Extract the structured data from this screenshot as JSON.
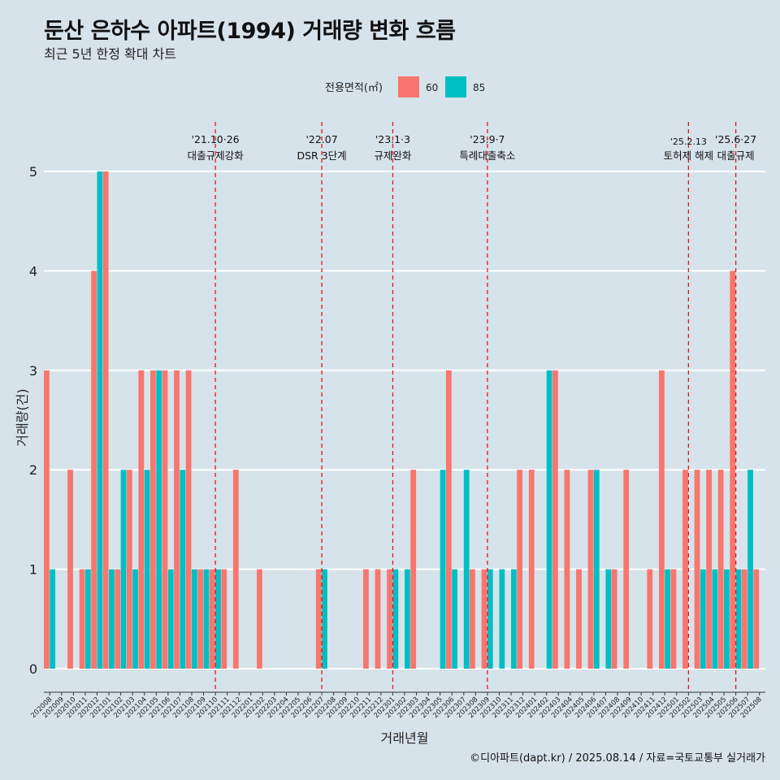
{
  "title": "둔산 은하수 아파트(1994) 거래량 변화 흐름",
  "subtitle": "최근 5년 한정 확대 차트",
  "caption": "©디아파트(dapt.kr) / 2025.08.14 / 자료=국토교통부 실거래가",
  "colors": {
    "s60": "#f8766d",
    "s85": "#00bfc4",
    "event": "#e8141e",
    "grid": "#ffffff"
  },
  "chart_data": {
    "type": "bar",
    "title": "둔산 은하수 아파트(1994) 거래량 변화 흐름",
    "subtitle": "최근 5년 한정 확대 차트",
    "xlabel": "거래년월",
    "ylabel": "거래량(건)",
    "ylim": [
      0,
      5
    ],
    "y_ticks": [
      0,
      1,
      2,
      3,
      4,
      5
    ],
    "grid": true,
    "legend": {
      "title": "전용면적(㎡)",
      "position": "top",
      "entries": [
        "60",
        "85"
      ]
    },
    "categories": [
      "202008",
      "202009",
      "202010",
      "202011",
      "202012",
      "202101",
      "202102",
      "202103",
      "202104",
      "202105",
      "202106",
      "202107",
      "202108",
      "202109",
      "202110",
      "202111",
      "202112",
      "202201",
      "202202",
      "202203",
      "202204",
      "202205",
      "202206",
      "202207",
      "202208",
      "202209",
      "202210",
      "202211",
      "202212",
      "202301",
      "202302",
      "202303",
      "202304",
      "202305",
      "202306",
      "202307",
      "202308",
      "202309",
      "202310",
      "202311",
      "202312",
      "202401",
      "202402",
      "202403",
      "202404",
      "202405",
      "202406",
      "202407",
      "202408",
      "202409",
      "202410",
      "202411",
      "202412",
      "202501",
      "202502",
      "202503",
      "202504",
      "202505",
      "202506",
      "202507",
      "202508"
    ],
    "series": [
      {
        "name": "60",
        "values": [
          3,
          0,
          2,
          1,
          4,
          5,
          1,
          2,
          3,
          3,
          3,
          3,
          3,
          1,
          1,
          1,
          2,
          0,
          1,
          0,
          0,
          0,
          0,
          1,
          0,
          0,
          0,
          1,
          1,
          1,
          0,
          2,
          0,
          0,
          3,
          0,
          1,
          1,
          0,
          0,
          2,
          2,
          0,
          3,
          2,
          1,
          2,
          0,
          1,
          2,
          0,
          1,
          3,
          1,
          2,
          2,
          2,
          2,
          4,
          1,
          1
        ]
      },
      {
        "name": "85",
        "values": [
          1,
          0,
          0,
          1,
          5,
          1,
          2,
          1,
          2,
          3,
          1,
          2,
          1,
          1,
          1,
          0,
          0,
          0,
          0,
          0,
          0,
          0,
          0,
          1,
          0,
          0,
          0,
          0,
          0,
          1,
          1,
          0,
          0,
          2,
          1,
          2,
          0,
          1,
          1,
          1,
          0,
          0,
          3,
          0,
          0,
          0,
          2,
          1,
          0,
          0,
          0,
          0,
          1,
          0,
          0,
          1,
          1,
          1,
          1,
          2,
          0
        ]
      }
    ],
    "events": [
      {
        "at": "202110",
        "date": "'21.10·26",
        "label": "대출규제강화"
      },
      {
        "at": "202207",
        "date": "'22.07",
        "label": "DSR 3단계"
      },
      {
        "at": "202301",
        "date": "'23.1·3",
        "label": "규제완화"
      },
      {
        "at": "202309",
        "date": "'23.9·7",
        "label": "특례대출축소"
      },
      {
        "at": "202502",
        "date": "'25.2.13",
        "label": "토허제 해제"
      },
      {
        "at": "202506",
        "date": "'25.6·27",
        "label": "대출규제"
      }
    ]
  }
}
